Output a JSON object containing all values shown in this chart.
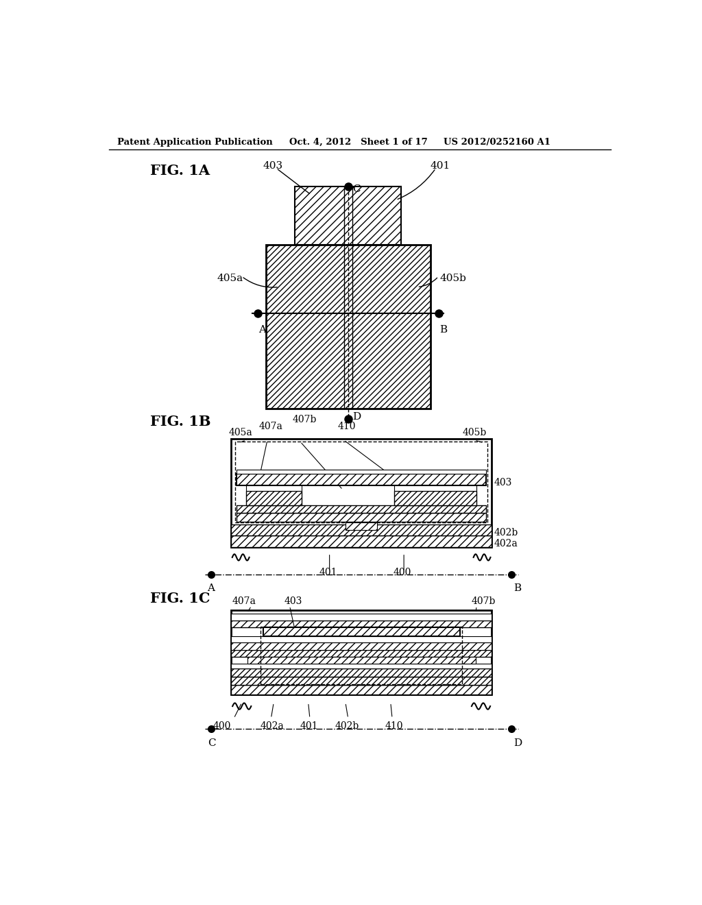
{
  "header_left": "Patent Application Publication",
  "header_mid": "Oct. 4, 2012   Sheet 1 of 17",
  "header_right": "US 2012/0252160 A1",
  "background": "#ffffff"
}
